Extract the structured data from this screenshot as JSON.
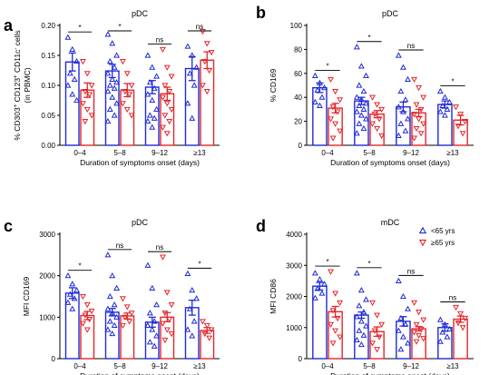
{
  "colors": {
    "young": "#1f2bd6",
    "old": "#e3262a"
  },
  "chart_data": [
    {
      "type": "bar",
      "panel": "a",
      "title": "pDC",
      "ylabel_parts": [
        "% CD303",
        "+",
        " CD123",
        "+",
        " CD11c",
        "-",
        " cells"
      ],
      "ylabel_sub": "(in PBMC)",
      "xlabel": "Duration of symptoms onset (days)",
      "categories": [
        "0–4",
        "5–8",
        "9–12",
        "≥13"
      ],
      "ylim": [
        0,
        0.2
      ],
      "yticks": [
        "0.00",
        "0.05",
        "0.10",
        "0.15",
        "0.20"
      ],
      "ytick_values": [
        0,
        0.05,
        0.1,
        0.15,
        0.2
      ],
      "significance": [
        "*",
        "*",
        "ns",
        "ns"
      ],
      "series": [
        {
          "name": "<65 yrs",
          "marker": "triangle-up",
          "values": [
            0.139,
            0.124,
            0.097,
            0.128
          ],
          "err": [
            0.015,
            0.011,
            0.011,
            0.02
          ],
          "points": [
            [
              0.18,
              0.16,
              0.14,
              0.12,
              0.11,
              0.1,
              0.085,
              0.075
            ],
            [
              0.185,
              0.17,
              0.15,
              0.14,
              0.13,
              0.12,
              0.11,
              0.105,
              0.1,
              0.095,
              0.09,
              0.08,
              0.07,
              0.06,
              0.05,
              0.04
            ],
            [
              0.15,
              0.13,
              0.115,
              0.105,
              0.095,
              0.085,
              0.075,
              0.06,
              0.05,
              0.045,
              0.04,
              0.03
            ],
            [
              0.165,
              0.15,
              0.13,
              0.12,
              0.1,
              0.07,
              0.045
            ]
          ]
        },
        {
          "name": "≥65 yrs",
          "marker": "triangle-down",
          "values": [
            0.092,
            0.092,
            0.086,
            0.142
          ],
          "err": [
            0.012,
            0.011,
            0.011,
            0.014
          ],
          "points": [
            [
              0.14,
              0.12,
              0.1,
              0.09,
              0.085,
              0.07,
              0.06,
              0.05,
              0.04
            ],
            [
              0.14,
              0.12,
              0.1,
              0.09,
              0.085,
              0.07,
              0.06,
              0.05
            ],
            [
              0.16,
              0.13,
              0.115,
              0.1,
              0.09,
              0.08,
              0.07,
              0.06,
              0.05,
              0.04,
              0.03,
              0.02
            ],
            [
              0.19,
              0.17,
              0.155,
              0.14,
              0.125,
              0.1,
              0.09
            ]
          ]
        }
      ]
    },
    {
      "type": "bar",
      "panel": "b",
      "title": "pDC",
      "ylabel": "% CD169",
      "xlabel": "Duration of symptoms onset (days)",
      "categories": [
        "0–4",
        "5–8",
        "9–12",
        "≥13"
      ],
      "ylim": [
        0,
        100
      ],
      "yticks": [
        "0",
        "20",
        "40",
        "60",
        "80",
        "100"
      ],
      "ytick_values": [
        0,
        20,
        40,
        60,
        80,
        100
      ],
      "significance": [
        "*",
        "*",
        "ns",
        "*"
      ],
      "series": [
        {
          "name": "<65 yrs",
          "marker": "triangle-up",
          "values": [
            48,
            37,
            32,
            34
          ],
          "err": [
            4,
            3,
            4,
            3
          ],
          "points": [
            [
              58,
              52,
              48,
              46,
              40,
              36,
              33
            ],
            [
              82,
              66,
              58,
              50,
              45,
              40,
              38,
              35,
              33,
              30,
              28,
              25,
              22,
              18,
              14,
              10
            ],
            [
              75,
              65,
              55,
              45,
              38,
              32,
              28,
              22,
              18,
              12,
              8
            ],
            [
              45,
              40,
              36,
              33,
              30,
              28,
              25
            ]
          ]
        },
        {
          "name": "≥65 yrs",
          "marker": "triangle-down",
          "values": [
            31,
            26,
            27,
            21
          ],
          "err": [
            4,
            3,
            3,
            4
          ],
          "points": [
            [
              55,
              45,
              38,
              32,
              28,
              22,
              18,
              12,
              6
            ],
            [
              40,
              34,
              30,
              26,
              22,
              18,
              14,
              8
            ],
            [
              55,
              48,
              40,
              34,
              30,
              26,
              22,
              18,
              14,
              10,
              6
            ],
            [
              32,
              26,
              20,
              16,
              10
            ]
          ]
        }
      ]
    },
    {
      "type": "bar",
      "panel": "c",
      "title": "pDC",
      "ylabel": "MFI CD169",
      "xlabel": "Duration of symptoms onset (days)",
      "categories": [
        "0–4",
        "5–8",
        "9–12",
        "≥13"
      ],
      "ylim": [
        0,
        3000
      ],
      "yticks": [
        "0",
        "1000",
        "2000",
        "3000"
      ],
      "ytick_values": [
        0,
        1000,
        2000,
        3000
      ],
      "significance": [
        "*",
        "ns",
        "ns",
        "*"
      ],
      "series": [
        {
          "name": "<65 yrs",
          "marker": "triangle-up",
          "values": [
            1580,
            1120,
            880,
            1230
          ],
          "err": [
            130,
            90,
            120,
            180
          ],
          "points": [
            [
              2000,
              1800,
              1650,
              1550,
              1450,
              1350,
              1200
            ],
            [
              2500,
              2000,
              1700,
              1500,
              1300,
              1200,
              1100,
              1000,
              900,
              800,
              700,
              600
            ],
            [
              2250,
              1700,
              1300,
              1100,
              900,
              800,
              700,
              550,
              400,
              300
            ],
            [
              2050,
              1650,
              1450,
              1200,
              900,
              700,
              550
            ]
          ]
        },
        {
          "name": "≥65 yrs",
          "marker": "triangle-down",
          "values": [
            1040,
            1030,
            1000,
            680
          ],
          "err": [
            100,
            70,
            110,
            70
          ],
          "points": [
            [
              1500,
              1300,
              1150,
              1050,
              950,
              850,
              700
            ],
            [
              1450,
              1250,
              1100,
              1000,
              900,
              800
            ],
            [
              2450,
              1600,
              1300,
              1100,
              950,
              850,
              700,
              600,
              450
            ],
            [
              900,
              800,
              700,
              600,
              500
            ]
          ]
        }
      ]
    },
    {
      "type": "bar",
      "panel": "d",
      "title": "mDC",
      "ylabel": "MFI CD86",
      "xlabel": "Duration of symptoms onset (days)",
      "categories": [
        "0–4",
        "5–8",
        "9–12",
        "≥13"
      ],
      "ylim": [
        0,
        4000
      ],
      "yticks": [
        "0",
        "1000",
        "2000",
        "3000",
        "4000"
      ],
      "ytick_values": [
        0,
        1000,
        2000,
        3000,
        4000
      ],
      "significance": [
        "*",
        "*",
        "ns",
        "ns"
      ],
      "legend": {
        "placement": "top-right",
        "entries": [
          "<65 yrs",
          "≥65 yrs"
        ]
      },
      "series": [
        {
          "name": "<65 yrs",
          "marker": "triangle-up",
          "values": [
            2330,
            1400,
            1200,
            1000
          ],
          "err": [
            120,
            100,
            150,
            120
          ],
          "points": [
            [
              2750,
              2550,
              2400,
              2250,
              2100,
              1950
            ],
            [
              2750,
              2200,
              1900,
              1700,
              1500,
              1350,
              1200,
              1050,
              900,
              750,
              600,
              450
            ],
            [
              2500,
              2000,
              1600,
              1300,
              1100,
              900,
              700,
              500,
              300
            ],
            [
              1250,
              1100,
              950,
              850,
              700,
              550
            ]
          ]
        },
        {
          "name": "≥65 yrs",
          "marker": "triangle-down",
          "values": [
            1510,
            870,
            960,
            1270
          ],
          "err": [
            170,
            150,
            70,
            100
          ],
          "points": [
            [
              2800,
              2100,
              1800,
              1550,
              1300,
              1100,
              900,
              700,
              500
            ],
            [
              1800,
              1400,
              1100,
              900,
              700,
              500,
              300
            ],
            [
              1800,
              1500,
              1250,
              1100,
              950,
              850,
              750,
              650,
              550
            ],
            [
              1650,
              1450,
              1300,
              1150,
              1000
            ]
          ]
        }
      ]
    }
  ]
}
